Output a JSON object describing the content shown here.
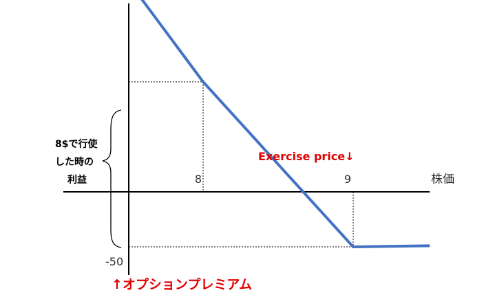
{
  "colors": {
    "payoff_line": "#4472C4",
    "axis": "#000000",
    "guide": "#000000",
    "annotation": "#E00000"
  },
  "labels": {
    "x_axis_name": "株価",
    "tick_8": "8",
    "tick_9": "9",
    "tick_minus50": "-50",
    "exercise_price": "Exercise price↓",
    "premium": "↑オプションプレミアム",
    "profit_line1": "8$で行使",
    "profit_line2": "した時の",
    "profit_line3": "利益"
  },
  "chart_data": {
    "type": "line",
    "title": "",
    "xlabel": "株価",
    "ylabel": "",
    "xticks": [
      "8",
      "9"
    ],
    "yticks": [
      "-50"
    ],
    "series": [
      {
        "points": [
          {
            "x": 7,
            "y": 191
          },
          {
            "x": 8,
            "y": 100
          },
          {
            "x": 9,
            "y": -50
          },
          {
            "x": 11,
            "y": -49
          }
        ]
      }
    ],
    "guides": [
      {
        "from": {
          "x": 7,
          "y": 100
        },
        "to": {
          "x": 8,
          "y": 100
        },
        "style": "dotted"
      },
      {
        "from": {
          "x": 8,
          "y": 100
        },
        "to": {
          "x": 8,
          "y": 0
        },
        "style": "dotted"
      },
      {
        "from": {
          "x": 9,
          "y": 0
        },
        "to": {
          "x": 9,
          "y": -50
        },
        "style": "dotted"
      },
      {
        "from": {
          "x": 7,
          "y": -50
        },
        "to": {
          "x": 9,
          "y": -50
        },
        "style": "dotted"
      }
    ],
    "grid": false,
    "legend": "none"
  }
}
